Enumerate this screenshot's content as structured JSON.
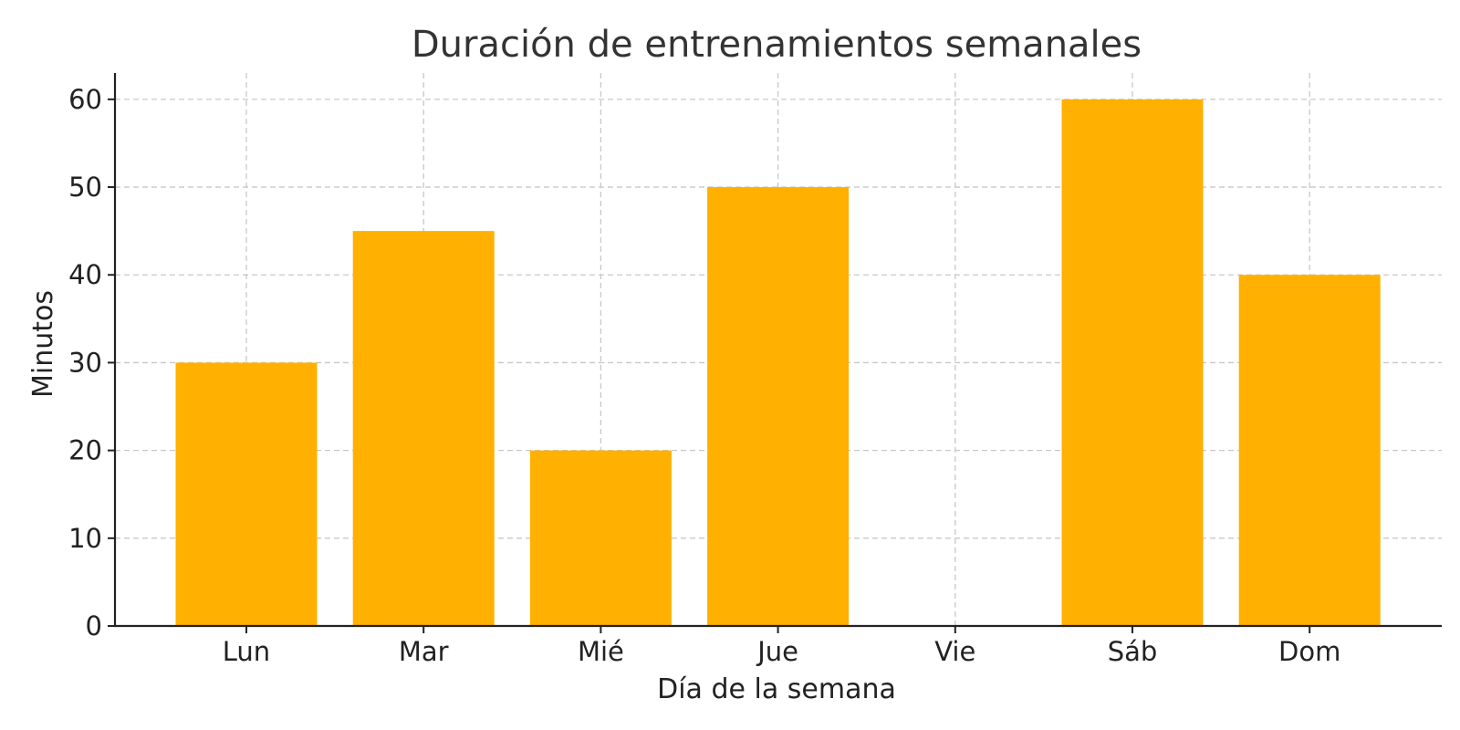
{
  "chart_data": {
    "type": "bar",
    "title": "Duración de entrenamientos semanales",
    "xlabel": "Día de la semana",
    "ylabel": "Minutos",
    "categories": [
      "Lun",
      "Mar",
      "Mié",
      "Jue",
      "Vie",
      "Sáb",
      "Dom"
    ],
    "values": [
      30,
      45,
      20,
      50,
      0,
      60,
      40
    ],
    "ylim": [
      0,
      63
    ],
    "yticks": [
      0,
      10,
      20,
      30,
      40,
      50,
      60
    ],
    "grid": true,
    "bar_color": "#FFB000"
  }
}
